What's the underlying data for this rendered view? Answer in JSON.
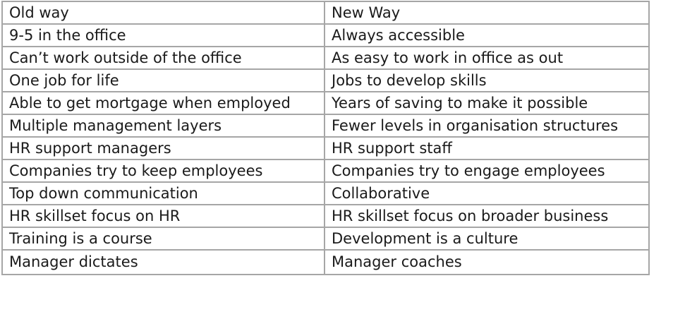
{
  "table": {
    "headers": [
      "Old way",
      "New Way"
    ],
    "rows": [
      [
        "9-5 in the office",
        "Always accessible"
      ],
      [
        "Can’t work outside of the office",
        "As easy to work in office as out"
      ],
      [
        "One job for life",
        "Jobs to develop skills"
      ],
      [
        "Able to get mortgage when employed",
        "Years of saving to make it possible"
      ],
      [
        "Multiple management layers",
        "Fewer levels in organisation structures"
      ],
      [
        "HR support managers",
        "HR support staff"
      ],
      [
        "Companies try to keep employees",
        "Companies try to engage employees"
      ],
      [
        "Top down communication",
        "Collaborative"
      ],
      [
        "HR skillset focus on HR",
        "HR skillset focus on broader business"
      ],
      [
        "Training is a course",
        "Development is a culture"
      ],
      [
        "Manager dictates",
        "Manager coaches"
      ]
    ]
  }
}
